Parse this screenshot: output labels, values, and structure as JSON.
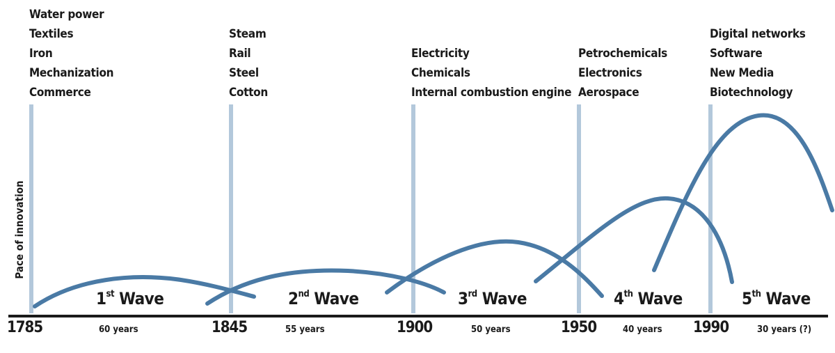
{
  "y_axis_label": "Pace of innovation",
  "periods": [
    {
      "year": "1785",
      "duration": "60 years",
      "wave_num": "1",
      "wave_sup": "st",
      "wave_word": "Wave",
      "techs": [
        "Water power",
        "Textiles",
        "Iron",
        "Mechanization",
        "Commerce"
      ]
    },
    {
      "year": "1845",
      "duration": "55 years",
      "wave_num": "2",
      "wave_sup": "nd",
      "wave_word": "Wave",
      "techs": [
        "Steam",
        "Rail",
        "Steel",
        "Cotton"
      ]
    },
    {
      "year": "1900",
      "duration": "50 years",
      "wave_num": "3",
      "wave_sup": "rd",
      "wave_word": "Wave",
      "techs": [
        "Electricity",
        "Chemicals",
        "Internal combustion engine"
      ]
    },
    {
      "year": "1950",
      "duration": "40 years",
      "wave_num": "4",
      "wave_sup": "th",
      "wave_word": "Wave",
      "techs": [
        "Petrochemicals",
        "Electronics",
        "Aerospace"
      ]
    },
    {
      "year": "1990",
      "duration": "30 years (?)",
      "wave_num": "5",
      "wave_sup": "th",
      "wave_word": "Wave",
      "techs": [
        "Digital networks",
        "Software",
        "New Media",
        "Biotechnology"
      ]
    }
  ],
  "colors": {
    "curve": "#4a7aa5",
    "vertical_line": "#b3c8db",
    "axis": "#1a1a1a"
  }
}
